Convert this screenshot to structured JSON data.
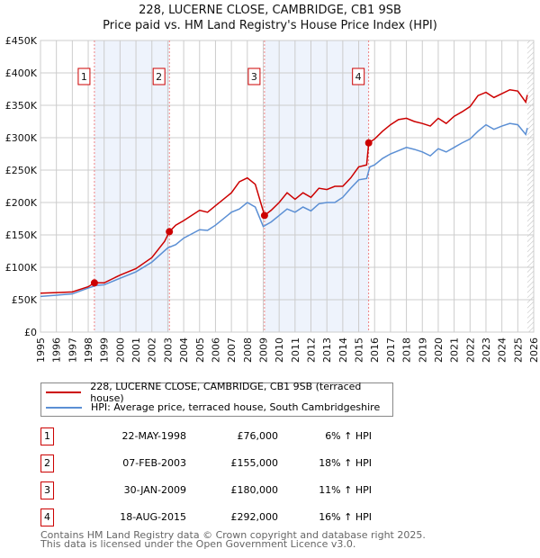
{
  "chart_data": {
    "type": "line",
    "title": "228, LUCERNE CLOSE, CAMBRIDGE, CB1 9SB",
    "subtitle": "Price paid vs. HM Land Registry's House Price Index (HPI)",
    "xlim": [
      1995,
      2026
    ],
    "ylim": [
      0,
      450000
    ],
    "y_ticks": [
      "£0",
      "£50K",
      "£100K",
      "£150K",
      "£200K",
      "£250K",
      "£300K",
      "£350K",
      "£400K",
      "£450K"
    ],
    "x_ticks": [
      "1995",
      "1996",
      "1997",
      "1998",
      "1999",
      "2000",
      "2001",
      "2002",
      "2003",
      "2004",
      "2005",
      "2006",
      "2007",
      "2008",
      "2009",
      "2010",
      "2011",
      "2012",
      "2013",
      "2014",
      "2015",
      "2016",
      "2017",
      "2018",
      "2019",
      "2020",
      "2021",
      "2022",
      "2023",
      "2024",
      "2025",
      "2026"
    ],
    "series": [
      {
        "name": "228, LUCERNE CLOSE, CAMBRIDGE, CB1 9SB (terraced house)",
        "color": "#cc0000",
        "points": [
          [
            1995,
            60
          ],
          [
            1996,
            61
          ],
          [
            1997,
            62
          ],
          [
            1998,
            70
          ],
          [
            1998.39,
            76
          ],
          [
            1999,
            76
          ],
          [
            2000,
            88
          ],
          [
            2001,
            98
          ],
          [
            2002,
            115
          ],
          [
            2002.8,
            140
          ],
          [
            2003.1,
            155
          ],
          [
            2003.5,
            165
          ],
          [
            2004,
            172
          ],
          [
            2005,
            188
          ],
          [
            2005.5,
            185
          ],
          [
            2006,
            195
          ],
          [
            2007,
            215
          ],
          [
            2007.5,
            232
          ],
          [
            2008,
            238
          ],
          [
            2008.5,
            228
          ],
          [
            2009.08,
            180
          ],
          [
            2009.5,
            188
          ],
          [
            2010,
            200
          ],
          [
            2010.5,
            215
          ],
          [
            2011,
            205
          ],
          [
            2011.5,
            215
          ],
          [
            2012,
            208
          ],
          [
            2012.5,
            222
          ],
          [
            2013,
            220
          ],
          [
            2013.5,
            225
          ],
          [
            2014,
            225
          ],
          [
            2014.5,
            238
          ],
          [
            2015,
            255
          ],
          [
            2015.5,
            258
          ],
          [
            2015.63,
            292
          ],
          [
            2016,
            298
          ],
          [
            2016.5,
            310
          ],
          [
            2017,
            320
          ],
          [
            2017.5,
            328
          ],
          [
            2018,
            330
          ],
          [
            2018.5,
            325
          ],
          [
            2019,
            322
          ],
          [
            2019.5,
            318
          ],
          [
            2020,
            330
          ],
          [
            2020.5,
            322
          ],
          [
            2021,
            333
          ],
          [
            2021.5,
            340
          ],
          [
            2022,
            348
          ],
          [
            2022.5,
            365
          ],
          [
            2023,
            370
          ],
          [
            2023.5,
            362
          ],
          [
            2024,
            368
          ],
          [
            2024.5,
            374
          ],
          [
            2025,
            372
          ],
          [
            2025.5,
            355
          ],
          [
            2025.6,
            366
          ]
        ]
      },
      {
        "name": "HPI: Average price, terraced house, South Cambridgeshire",
        "color": "#5b8fd4",
        "points": [
          [
            1995,
            55
          ],
          [
            1996,
            57
          ],
          [
            1997,
            59
          ],
          [
            1998,
            68
          ],
          [
            1998.5,
            72
          ],
          [
            1999,
            73
          ],
          [
            2000,
            83
          ],
          [
            2001,
            93
          ],
          [
            2002,
            108
          ],
          [
            2003,
            130
          ],
          [
            2003.5,
            135
          ],
          [
            2004,
            145
          ],
          [
            2005,
            158
          ],
          [
            2005.5,
            157
          ],
          [
            2006,
            165
          ],
          [
            2007,
            185
          ],
          [
            2007.5,
            190
          ],
          [
            2008,
            200
          ],
          [
            2008.5,
            193
          ],
          [
            2009,
            163
          ],
          [
            2009.5,
            170
          ],
          [
            2010,
            180
          ],
          [
            2010.5,
            190
          ],
          [
            2011,
            185
          ],
          [
            2011.5,
            193
          ],
          [
            2012,
            187
          ],
          [
            2012.5,
            198
          ],
          [
            2013,
            200
          ],
          [
            2013.5,
            200
          ],
          [
            2014,
            208
          ],
          [
            2014.5,
            222
          ],
          [
            2015,
            235
          ],
          [
            2015.5,
            237
          ],
          [
            2015.7,
            255
          ],
          [
            2016,
            258
          ],
          [
            2016.5,
            268
          ],
          [
            2017,
            275
          ],
          [
            2017.5,
            280
          ],
          [
            2018,
            285
          ],
          [
            2018.5,
            282
          ],
          [
            2019,
            278
          ],
          [
            2019.5,
            272
          ],
          [
            2020,
            283
          ],
          [
            2020.5,
            278
          ],
          [
            2021,
            285
          ],
          [
            2021.5,
            292
          ],
          [
            2022,
            298
          ],
          [
            2022.5,
            310
          ],
          [
            2023,
            320
          ],
          [
            2023.5,
            313
          ],
          [
            2024,
            318
          ],
          [
            2024.5,
            322
          ],
          [
            2025,
            320
          ],
          [
            2025.5,
            305
          ],
          [
            2025.6,
            315
          ]
        ]
      }
    ],
    "sales": [
      {
        "n": "1",
        "x": 1998.39,
        "value": 76000,
        "date": "22-MAY-1998",
        "price": "£76,000",
        "hpi": "6% ↑ HPI"
      },
      {
        "n": "2",
        "x": 2003.1,
        "value": 155000,
        "date": "07-FEB-2003",
        "price": "£155,000",
        "hpi": "18% ↑ HPI"
      },
      {
        "n": "3",
        "x": 2009.08,
        "value": 180000,
        "date": "30-JAN-2009",
        "price": "£180,000",
        "hpi": "11% ↑ HPI"
      },
      {
        "n": "4",
        "x": 2015.63,
        "value": 292000,
        "date": "18-AUG-2015",
        "price": "£292,000",
        "hpi": "16% ↑ HPI"
      }
    ],
    "shaded_ranges": [
      [
        1998.39,
        2003.1
      ],
      [
        2009.08,
        2015.63
      ]
    ],
    "forecast_from": 2025.6
  },
  "legend": {
    "red": "228, LUCERNE CLOSE, CAMBRIDGE, CB1 9SB (terraced house)",
    "blue": "HPI: Average price, terraced house, South Cambridgeshire"
  },
  "footer": {
    "line1": "Contains HM Land Registry data © Crown copyright and database right 2025.",
    "line2": "This data is licensed under the Open Government Licence v3.0."
  }
}
